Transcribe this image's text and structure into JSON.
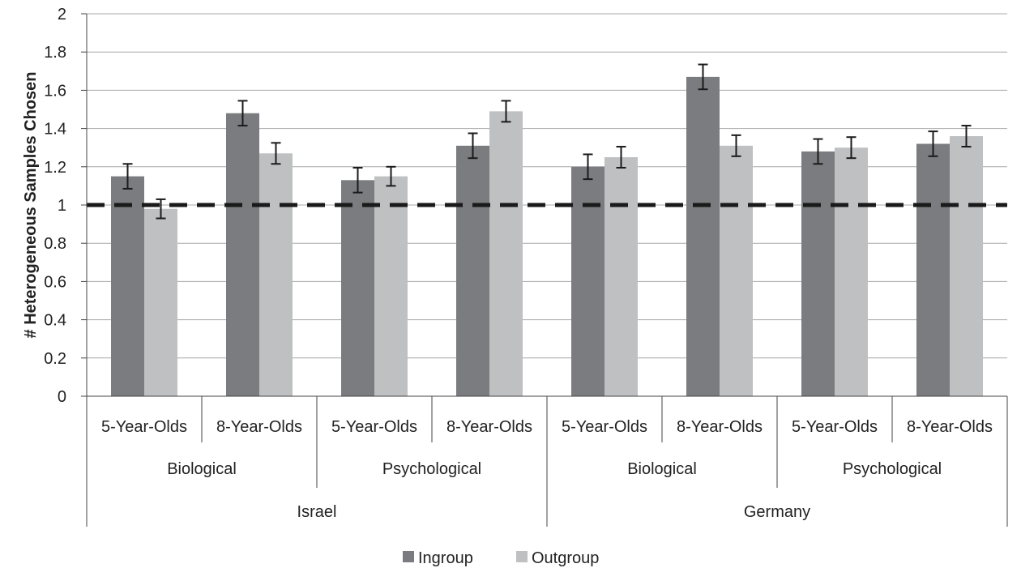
{
  "chart_data": {
    "type": "bar",
    "ylabel": "# Heterogeneous Samples Chosen",
    "ylim": [
      0,
      2
    ],
    "yticks": [
      0,
      0.2,
      0.4,
      0.6,
      0.8,
      1,
      1.2,
      1.4,
      1.6,
      1.8,
      2
    ],
    "ytick_labels": [
      "0",
      "0.2",
      "0.4",
      "0.6",
      "0.8",
      "1",
      "1.2",
      "1.4",
      "1.6",
      "1.8",
      "2"
    ],
    "grid": true,
    "reference_line": {
      "y": 1,
      "style": "dashed",
      "color": "#1a1a1a"
    },
    "categories": [
      "5-Year-Olds",
      "8-Year-Olds",
      "5-Year-Olds",
      "8-Year-Olds",
      "5-Year-Olds",
      "8-Year-Olds",
      "5-Year-Olds",
      "8-Year-Olds"
    ],
    "category_groups": [
      {
        "label": "Biological",
        "span": 2
      },
      {
        "label": "Psychological",
        "span": 2
      },
      {
        "label": "Biological",
        "span": 2
      },
      {
        "label": "Psychological",
        "span": 2
      }
    ],
    "super_groups": [
      {
        "label": "Israel",
        "span": 4
      },
      {
        "label": "Germany",
        "span": 4
      }
    ],
    "series": [
      {
        "name": "Ingroup",
        "color": "#7b7c7f",
        "values": [
          1.15,
          1.48,
          1.13,
          1.31,
          1.2,
          1.67,
          1.28,
          1.32
        ],
        "errors": [
          0.065,
          0.065,
          0.065,
          0.065,
          0.065,
          0.065,
          0.065,
          0.065
        ]
      },
      {
        "name": "Outgroup",
        "color": "#bfc0c2",
        "values": [
          0.98,
          1.27,
          1.15,
          1.49,
          1.25,
          1.31,
          1.3,
          1.36
        ],
        "errors": [
          0.05,
          0.055,
          0.05,
          0.055,
          0.055,
          0.055,
          0.055,
          0.055
        ]
      }
    ],
    "legend": {
      "position": "bottom-center"
    }
  }
}
